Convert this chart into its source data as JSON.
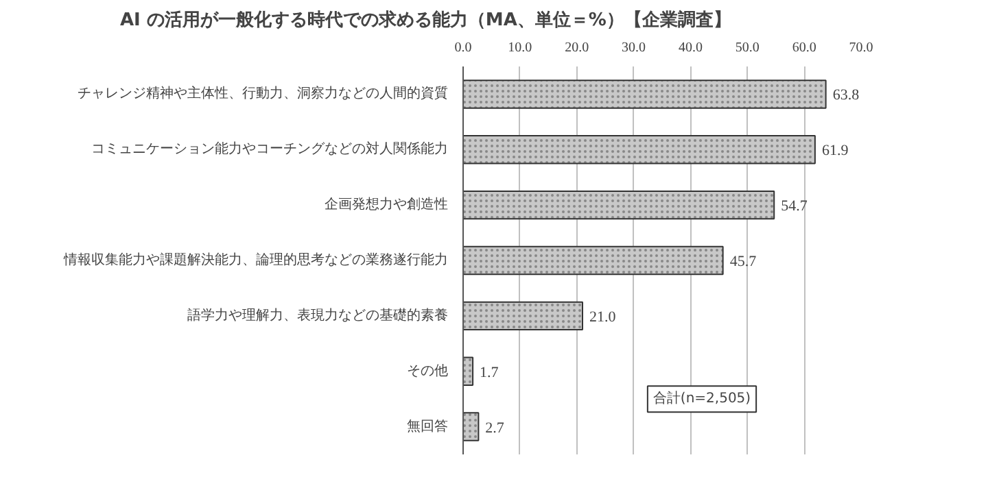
{
  "chart_data": {
    "type": "bar",
    "orientation": "horizontal",
    "title": "AI の活用が一般化する時代での求める能力（MA、単位＝%）【企業調査】",
    "categories": [
      "チャレンジ精神や主体性、行動力、洞察力などの人間的資質",
      "コミュニケーション能力やコーチングなどの対人関係能力",
      "企画発想力や創造性",
      "情報収集能力や課題解決能力、論理的思考などの業務遂行能力",
      "語学力や理解力、表現力などの基礎的素養",
      "その他",
      "無回答"
    ],
    "values": [
      63.8,
      61.9,
      54.7,
      45.7,
      21.0,
      1.7,
      2.7
    ],
    "value_labels": [
      "63.8",
      "61.9",
      "54.7",
      "45.7",
      "21.0",
      "1.7",
      "2.7"
    ],
    "color": "#c8c8c8",
    "xlim": [
      0,
      70
    ],
    "xticks": [
      {
        "value": 0,
        "label": "0.0"
      },
      {
        "value": 10,
        "label": "10.0"
      },
      {
        "value": 20,
        "label": "20.0"
      },
      {
        "value": 30,
        "label": "30.0"
      },
      {
        "value": 40,
        "label": "40.0"
      },
      {
        "value": 50,
        "label": "50.0"
      },
      {
        "value": 60,
        "label": "60.0"
      },
      {
        "value": 70,
        "label": "70.0"
      }
    ],
    "grid": "x",
    "annotations": [
      "合計(n=2,505)"
    ]
  }
}
